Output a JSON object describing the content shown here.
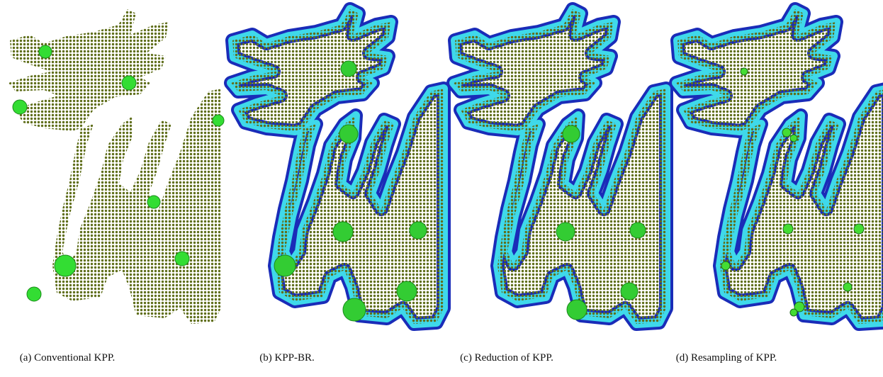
{
  "figure": {
    "panels": [
      {
        "caption": "(a) Conventional KPP."
      },
      {
        "caption": "(b) KPP-BR."
      },
      {
        "caption": "(c) Reduction of KPP."
      },
      {
        "caption": "(d) Resampling of KPP."
      }
    ]
  }
}
